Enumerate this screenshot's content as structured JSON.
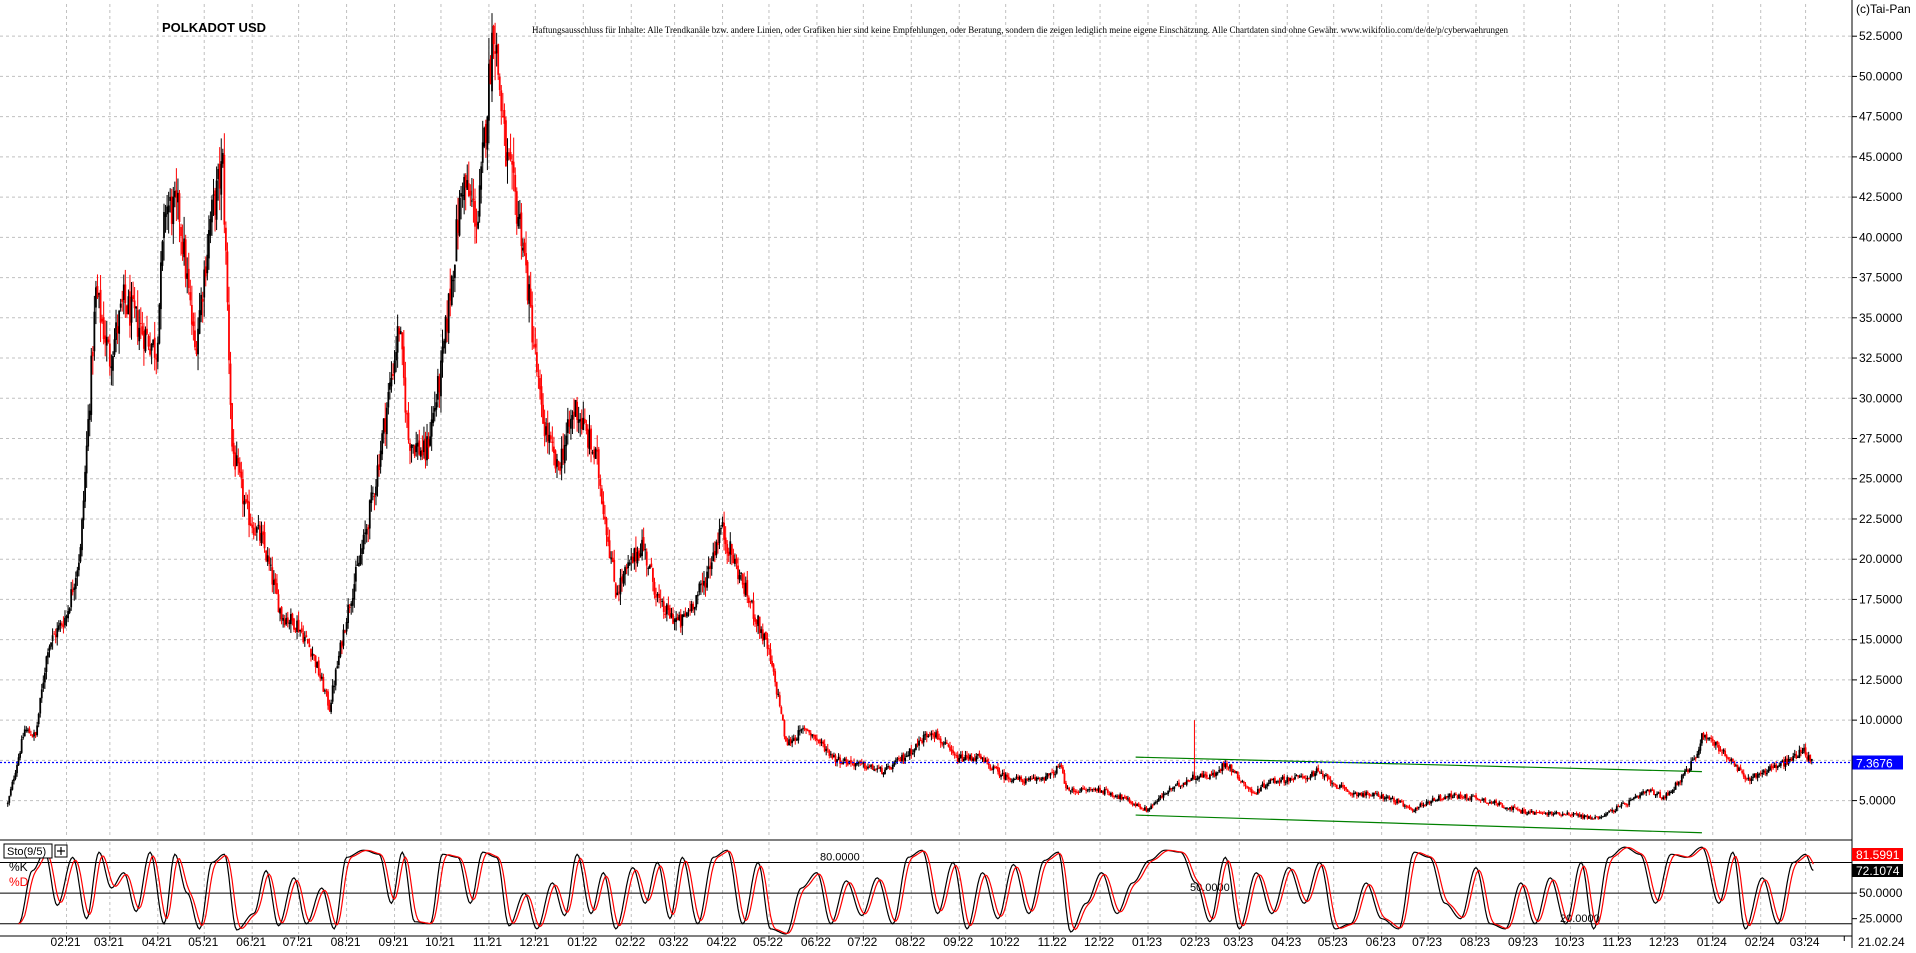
{
  "copyright": "(c)Tai-Pan",
  "disclaimer": "Haftungsausschluss für Inhalte: Alle Trendkanäle bzw. andere Linien, oder Grafiken hier sind keine Empfehlungen, oder Beratung, sondern die zeigen lediglich meine eigene Einschätzung. Alle Chartdaten sind ohne Gewähr.  www.wikifolio.com/de/de/p/cyberwaehrungen",
  "colors": {
    "up_candle": "#000000",
    "down_candle": "#ff0000",
    "trendline": "#008000",
    "last_price_line": "#0000ff",
    "k_line": "#000000",
    "d_line": "#ff0000",
    "grid": "#c0c0c0"
  },
  "chart_data": [
    {
      "type": "candlestick",
      "title": "POLKADOT USD",
      "ylim": [
        2.8,
        54.5
      ],
      "yticks": [
        "5.0000",
        "7.5000",
        "10.0000",
        "12.5000",
        "15.0000",
        "17.5000",
        "20.0000",
        "22.5000",
        "25.0000",
        "27.5000",
        "30.0000",
        "32.5000",
        "35.0000",
        "37.5000",
        "40.0000",
        "42.5000",
        "45.0000",
        "47.5000",
        "50.0000",
        "52.5000"
      ],
      "ytick_values": [
        5,
        7.5,
        10,
        12.5,
        15,
        17.5,
        20,
        22.5,
        25,
        27.5,
        30,
        32.5,
        35,
        37.5,
        40,
        42.5,
        45,
        47.5,
        50,
        52.5
      ],
      "x_range": [
        "2020-12-20",
        "2024-03-31"
      ],
      "xticks": [
        "02.21",
        "03.21",
        "04.21",
        "05.21",
        "06.21",
        "07.21",
        "08.21",
        "09.21",
        "10.21",
        "11.21",
        "12.21",
        "01.22",
        "02.22",
        "03.22",
        "04.22",
        "05.22",
        "06.22",
        "07.22",
        "08.22",
        "09.22",
        "10.22",
        "11.22",
        "12.22",
        "01.23",
        "02.23",
        "03.23",
        "04.23",
        "05.23",
        "06.23",
        "07.23",
        "08.23",
        "09.23",
        "10.23",
        "11.23",
        "12.23",
        "01.24",
        "02.24",
        "03.24",
        "21.02.24"
      ],
      "xtick_dates": [
        "2021-02-01",
        "2021-03-01",
        "2021-04-01",
        "2021-05-01",
        "2021-06-01",
        "2021-07-01",
        "2021-08-01",
        "2021-09-01",
        "2021-10-01",
        "2021-11-01",
        "2021-12-01",
        "2022-01-01",
        "2022-02-01",
        "2022-03-01",
        "2022-04-01",
        "2022-05-01",
        "2022-06-01",
        "2022-07-01",
        "2022-08-01",
        "2022-09-01",
        "2022-10-01",
        "2022-11-01",
        "2022-12-01",
        "2023-01-01",
        "2023-02-01",
        "2023-03-01",
        "2023-04-01",
        "2023-05-01",
        "2023-06-01",
        "2023-07-01",
        "2023-08-01",
        "2023-09-01",
        "2023-10-01",
        "2023-11-01",
        "2023-12-01",
        "2024-01-01",
        "2024-02-01",
        "2024-03-01",
        "2024-03-26"
      ],
      "last_price": 7.3676,
      "last_price_label": "7.3676",
      "series_path": [
        [
          "2020-12-25",
          4.8
        ],
        [
          "2021-01-05",
          9.4
        ],
        [
          "2021-01-12",
          9.0
        ],
        [
          "2021-01-20",
          14.6
        ],
        [
          "2021-02-01",
          16.5
        ],
        [
          "2021-02-10",
          20.5
        ],
        [
          "2021-02-20",
          36.5
        ],
        [
          "2021-03-01",
          32.5
        ],
        [
          "2021-03-10",
          36.0
        ],
        [
          "2021-03-20",
          34.5
        ],
        [
          "2021-03-31",
          33.0
        ],
        [
          "2021-04-06",
          42.0
        ],
        [
          "2021-04-15",
          41.5
        ],
        [
          "2021-04-25",
          33.0
        ],
        [
          "2021-05-05",
          41.0
        ],
        [
          "2021-05-13",
          44.5
        ],
        [
          "2021-05-19",
          27.0
        ],
        [
          "2021-05-28",
          23.0
        ],
        [
          "2021-06-08",
          21.0
        ],
        [
          "2021-06-20",
          16.5
        ],
        [
          "2021-06-30",
          16.0
        ],
        [
          "2021-07-10",
          14.2
        ],
        [
          "2021-07-21",
          10.8
        ],
        [
          "2021-08-01",
          16.5
        ],
        [
          "2021-08-12",
          21.0
        ],
        [
          "2021-08-20",
          25.0
        ],
        [
          "2021-09-04",
          34.5
        ],
        [
          "2021-09-10",
          27.5
        ],
        [
          "2021-09-21",
          26.5
        ],
        [
          "2021-10-01",
          31.5
        ],
        [
          "2021-10-15",
          43.5
        ],
        [
          "2021-10-25",
          41.0
        ],
        [
          "2021-11-04",
          53.5
        ],
        [
          "2021-11-12",
          45.0
        ],
        [
          "2021-11-22",
          40.5
        ],
        [
          "2021-12-05",
          29.0
        ],
        [
          "2021-12-15",
          25.5
        ],
        [
          "2021-12-27",
          29.5
        ],
        [
          "2022-01-10",
          26.0
        ],
        [
          "2022-01-22",
          18.0
        ],
        [
          "2022-02-08",
          21.0
        ],
        [
          "2022-02-20",
          17.0
        ],
        [
          "2022-03-05",
          16.0
        ],
        [
          "2022-03-20",
          18.5
        ],
        [
          "2022-03-31",
          22.0
        ],
        [
          "2022-04-12",
          19.0
        ],
        [
          "2022-04-30",
          14.5
        ],
        [
          "2022-05-08",
          11.0
        ],
        [
          "2022-05-12",
          8.5
        ],
        [
          "2022-05-25",
          9.5
        ],
        [
          "2022-06-13",
          7.6
        ],
        [
          "2022-06-30",
          7.2
        ],
        [
          "2022-07-15",
          6.8
        ],
        [
          "2022-07-31",
          8.0
        ],
        [
          "2022-08-14",
          9.4
        ],
        [
          "2022-08-30",
          7.6
        ],
        [
          "2022-09-13",
          7.7
        ],
        [
          "2022-09-30",
          6.5
        ],
        [
          "2022-10-15",
          6.2
        ],
        [
          "2022-10-31",
          6.6
        ],
        [
          "2022-11-05",
          7.2
        ],
        [
          "2022-11-10",
          5.6
        ],
        [
          "2022-11-30",
          5.7
        ],
        [
          "2022-12-15",
          5.2
        ],
        [
          "2022-12-31",
          4.4
        ],
        [
          "2023-01-14",
          5.6
        ],
        [
          "2023-01-31",
          6.5
        ],
        [
          "2023-02-14",
          6.6
        ],
        [
          "2023-02-20",
          7.4
        ],
        [
          "2023-03-10",
          5.4
        ],
        [
          "2023-03-20",
          6.2
        ],
        [
          "2023-04-15",
          6.5
        ],
        [
          "2023-04-20",
          6.8
        ],
        [
          "2023-05-10",
          5.5
        ],
        [
          "2023-05-31",
          5.3
        ],
        [
          "2023-06-10",
          5.0
        ],
        [
          "2023-06-20",
          4.4
        ],
        [
          "2023-07-05",
          5.1
        ],
        [
          "2023-07-15",
          5.3
        ],
        [
          "2023-07-31",
          5.2
        ],
        [
          "2023-08-15",
          4.8
        ],
        [
          "2023-08-31",
          4.3
        ],
        [
          "2023-09-15",
          4.2
        ],
        [
          "2023-09-30",
          4.2
        ],
        [
          "2023-10-15",
          3.9
        ],
        [
          "2023-10-20",
          4.0
        ],
        [
          "2023-11-10",
          5.0
        ],
        [
          "2023-11-20",
          5.6
        ],
        [
          "2023-12-01",
          5.2
        ],
        [
          "2023-12-10",
          6.2
        ],
        [
          "2023-12-20",
          7.5
        ],
        [
          "2023-12-26",
          9.2
        ],
        [
          "2024-01-05",
          8.3
        ],
        [
          "2024-01-12",
          7.5
        ],
        [
          "2024-01-23",
          6.3
        ],
        [
          "2024-02-05",
          6.9
        ],
        [
          "2024-02-20",
          7.5
        ],
        [
          "2024-02-28",
          8.2
        ],
        [
          "2024-03-05",
          7.37
        ]
      ],
      "trendlines": [
        {
          "from": [
            "2022-12-24",
            7.7
          ],
          "to": [
            "2023-12-25",
            6.8
          ]
        },
        {
          "from": [
            "2022-12-24",
            4.1
          ],
          "to": [
            "2023-12-25",
            3.0
          ]
        }
      ],
      "annotations": [
        {
          "date": "2023-01-31",
          "value": 10.0,
          "type": "spike"
        }
      ]
    },
    {
      "type": "line",
      "indicator": "Sto(9/5)",
      "series": [
        {
          "name": "%K"
        },
        {
          "name": "%D"
        }
      ],
      "ylim": [
        10,
        100
      ],
      "yticks": [
        "25.0000",
        "50.0000"
      ],
      "ytick_values": [
        25,
        50
      ],
      "levels": [
        {
          "value": 80,
          "label": "80.0000"
        },
        {
          "value": 50,
          "label": "50.0000"
        },
        {
          "value": 20,
          "label": "20.0000"
        }
      ],
      "k_last": 72.1074,
      "k_last_label": "72.1074",
      "d_last": 81.5991,
      "d_last_label": "81.5991",
      "k_path": [
        [
          "2021-01-01",
          20
        ],
        [
          "2021-01-10",
          72
        ],
        [
          "2021-01-18",
          90
        ],
        [
          "2021-01-26",
          38
        ],
        [
          "2021-02-05",
          85
        ],
        [
          "2021-02-14",
          25
        ],
        [
          "2021-02-22",
          90
        ],
        [
          "2021-03-02",
          55
        ],
        [
          "2021-03-10",
          70
        ],
        [
          "2021-03-18",
          32
        ],
        [
          "2021-03-27",
          90
        ],
        [
          "2021-04-05",
          20
        ],
        [
          "2021-04-12",
          88
        ],
        [
          "2021-04-20",
          50
        ],
        [
          "2021-04-28",
          15
        ],
        [
          "2021-05-06",
          80
        ],
        [
          "2021-05-14",
          88
        ],
        [
          "2021-05-22",
          14
        ],
        [
          "2021-06-02",
          30
        ],
        [
          "2021-06-10",
          72
        ],
        [
          "2021-06-18",
          18
        ],
        [
          "2021-06-28",
          65
        ],
        [
          "2021-07-06",
          20
        ],
        [
          "2021-07-16",
          55
        ],
        [
          "2021-07-24",
          15
        ],
        [
          "2021-08-01",
          85
        ],
        [
          "2021-08-12",
          92
        ],
        [
          "2021-08-22",
          88
        ],
        [
          "2021-08-30",
          40
        ],
        [
          "2021-09-06",
          90
        ],
        [
          "2021-09-14",
          22
        ],
        [
          "2021-09-24",
          20
        ],
        [
          "2021-10-02",
          88
        ],
        [
          "2021-10-12",
          85
        ],
        [
          "2021-10-20",
          40
        ],
        [
          "2021-10-28",
          90
        ],
        [
          "2021-11-06",
          85
        ],
        [
          "2021-11-14",
          18
        ],
        [
          "2021-11-24",
          50
        ],
        [
          "2021-12-02",
          15
        ],
        [
          "2021-12-12",
          60
        ],
        [
          "2021-12-20",
          28
        ],
        [
          "2021-12-28",
          88
        ],
        [
          "2022-01-06",
          30
        ],
        [
          "2022-01-14",
          70
        ],
        [
          "2022-01-22",
          15
        ],
        [
          "2022-02-02",
          75
        ],
        [
          "2022-02-10",
          40
        ],
        [
          "2022-02-18",
          80
        ],
        [
          "2022-02-26",
          25
        ],
        [
          "2022-03-06",
          85
        ],
        [
          "2022-03-16",
          20
        ],
        [
          "2022-03-26",
          85
        ],
        [
          "2022-04-04",
          92
        ],
        [
          "2022-04-14",
          20
        ],
        [
          "2022-04-24",
          80
        ],
        [
          "2022-05-02",
          15
        ],
        [
          "2022-05-12",
          10
        ],
        [
          "2022-05-22",
          55
        ],
        [
          "2022-06-01",
          70
        ],
        [
          "2022-06-10",
          20
        ],
        [
          "2022-06-20",
          62
        ],
        [
          "2022-06-30",
          28
        ],
        [
          "2022-07-10",
          65
        ],
        [
          "2022-07-20",
          20
        ],
        [
          "2022-07-30",
          85
        ],
        [
          "2022-08-08",
          92
        ],
        [
          "2022-08-18",
          30
        ],
        [
          "2022-08-28",
          80
        ],
        [
          "2022-09-06",
          15
        ],
        [
          "2022-09-16",
          70
        ],
        [
          "2022-09-26",
          25
        ],
        [
          "2022-10-06",
          78
        ],
        [
          "2022-10-16",
          30
        ],
        [
          "2022-10-26",
          82
        ],
        [
          "2022-11-04",
          90
        ],
        [
          "2022-11-12",
          12
        ],
        [
          "2022-11-22",
          40
        ],
        [
          "2022-12-02",
          70
        ],
        [
          "2022-12-12",
          30
        ],
        [
          "2022-12-22",
          60
        ],
        [
          "2023-01-02",
          82
        ],
        [
          "2023-01-12",
          92
        ],
        [
          "2023-01-22",
          90
        ],
        [
          "2023-02-01",
          60
        ],
        [
          "2023-02-10",
          22
        ],
        [
          "2023-02-20",
          85
        ],
        [
          "2023-03-01",
          15
        ],
        [
          "2023-03-12",
          70
        ],
        [
          "2023-03-22",
          30
        ],
        [
          "2023-04-02",
          75
        ],
        [
          "2023-04-12",
          40
        ],
        [
          "2023-04-22",
          80
        ],
        [
          "2023-05-02",
          15
        ],
        [
          "2023-05-12",
          20
        ],
        [
          "2023-05-22",
          60
        ],
        [
          "2023-06-01",
          25
        ],
        [
          "2023-06-12",
          15
        ],
        [
          "2023-06-22",
          90
        ],
        [
          "2023-07-02",
          85
        ],
        [
          "2023-07-12",
          40
        ],
        [
          "2023-07-22",
          25
        ],
        [
          "2023-08-01",
          75
        ],
        [
          "2023-08-10",
          20
        ],
        [
          "2023-08-20",
          15
        ],
        [
          "2023-08-30",
          60
        ],
        [
          "2023-09-08",
          20
        ],
        [
          "2023-09-18",
          65
        ],
        [
          "2023-09-28",
          20
        ],
        [
          "2023-10-08",
          80
        ],
        [
          "2023-10-16",
          15
        ],
        [
          "2023-10-26",
          85
        ],
        [
          "2023-11-05",
          95
        ],
        [
          "2023-11-15",
          88
        ],
        [
          "2023-11-25",
          40
        ],
        [
          "2023-12-05",
          88
        ],
        [
          "2023-12-15",
          85
        ],
        [
          "2023-12-25",
          95
        ],
        [
          "2024-01-05",
          40
        ],
        [
          "2024-01-14",
          90
        ],
        [
          "2024-01-22",
          15
        ],
        [
          "2024-02-02",
          65
        ],
        [
          "2024-02-12",
          20
        ],
        [
          "2024-02-22",
          80
        ],
        [
          "2024-03-01",
          88
        ],
        [
          "2024-03-06",
          72
        ]
      ]
    }
  ]
}
